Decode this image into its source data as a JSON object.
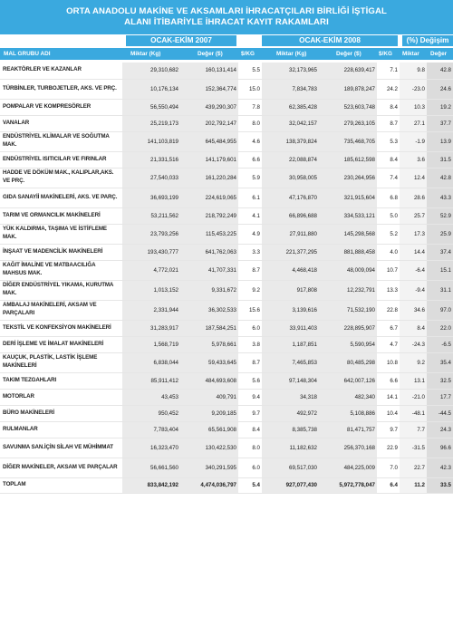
{
  "title": {
    "line1": "ORTA ANADOLU MAKİNE VE AKSAMLARI İHRACATÇILARI BİRLİĞİ İŞTİGAL",
    "line2": "ALANI İTİBARİYLE İHRACAT KAYIT RAKAMLARI"
  },
  "groups": {
    "period_2007": "OCAK-EKİM 2007",
    "period_2008": "OCAK-EKİM 2008",
    "change": "(%) Değişim"
  },
  "headers": {
    "name": "MAL GRUBU ADI",
    "kg_2007": "Miktar (Kg)",
    "usd_2007": "Değer ($)",
    "usd_per_kg_2007": "$/KG",
    "kg_2008": "Miktar (Kg)",
    "usd_2008": "Değer ($)",
    "usd_per_kg_2008": "$/KG",
    "change_kg": "Miktar",
    "change_usd": "Değer"
  },
  "rows": [
    {
      "name": "REAKTÖRLER VE KAZANLAR",
      "kg07": "29,310,682",
      "usd07": "160,131,414",
      "upk07": "5.5",
      "kg08": "32,173,965",
      "usd08": "228,639,417",
      "upk08": "7.1",
      "ckg": "9.8",
      "cusd": "42.8"
    },
    {
      "name": "TÜRBİNLER, TURBOJETLER, AKS. VE PRÇ.",
      "kg07": "10,176,134",
      "usd07": "152,364,774",
      "upk07": "15.0",
      "kg08": "7,834,783",
      "usd08": "189,878,247",
      "upk08": "24.2",
      "ckg": "-23.0",
      "cusd": "24.6"
    },
    {
      "name": "POMPALAR VE KOMPRESÖRLER",
      "kg07": "56,550,494",
      "usd07": "439,290,307",
      "upk07": "7.8",
      "kg08": "62,385,428",
      "usd08": "523,603,748",
      "upk08": "8.4",
      "ckg": "10.3",
      "cusd": "19.2"
    },
    {
      "name": "VANALAR",
      "kg07": "25,219,173",
      "usd07": "202,792,147",
      "upk07": "8.0",
      "kg08": "32,042,157",
      "usd08": "279,263,105",
      "upk08": "8.7",
      "ckg": "27.1",
      "cusd": "37.7"
    },
    {
      "name": "ENDÜSTRİYEL KLİMALAR VE SOĞUTMA MAK.",
      "kg07": "141,103,819",
      "usd07": "645,484,955",
      "upk07": "4.6",
      "kg08": "138,379,824",
      "usd08": "735,468,705",
      "upk08": "5.3",
      "ckg": "-1.9",
      "cusd": "13.9"
    },
    {
      "name": "ENDÜSTRİYEL ISITICILAR VE FIRINLAR",
      "kg07": "21,331,516",
      "usd07": "141,179,601",
      "upk07": "6.6",
      "kg08": "22,088,874",
      "usd08": "185,612,598",
      "upk08": "8.4",
      "ckg": "3.6",
      "cusd": "31.5"
    },
    {
      "name": "HADDE VE DÖKÜM MAK., KALIPLAR,AKS. VE PRÇ.",
      "kg07": "27,540,033",
      "usd07": "161,220,284",
      "upk07": "5.9",
      "kg08": "30,958,005",
      "usd08": "230,264,956",
      "upk08": "7.4",
      "ckg": "12.4",
      "cusd": "42.8"
    },
    {
      "name": "GIDA SANAYİİ MAKİNELERİ, AKS. VE PARÇ.",
      "kg07": "36,693,199",
      "usd07": "224,619,065",
      "upk07": "6.1",
      "kg08": "47,176,870",
      "usd08": "321,915,604",
      "upk08": "6.8",
      "ckg": "28.6",
      "cusd": "43.3"
    },
    {
      "name": "TARIM VE ORMANCILIK MAKİNELERİ",
      "kg07": "53,211,562",
      "usd07": "218,792,249",
      "upk07": "4.1",
      "kg08": "66,896,688",
      "usd08": "334,533,121",
      "upk08": "5.0",
      "ckg": "25.7",
      "cusd": "52.9"
    },
    {
      "name": "YÜK KALDIRMA, TAŞIMA VE İSTİFLEME MAK.",
      "kg07": "23,793,256",
      "usd07": "115,453,225",
      "upk07": "4.9",
      "kg08": "27,911,880",
      "usd08": "145,298,568",
      "upk08": "5.2",
      "ckg": "17.3",
      "cusd": "25.9"
    },
    {
      "name": "İNŞAAT VE MADENCİLİK MAKİNELERİ",
      "kg07": "193,430,777",
      "usd07": "641,762,063",
      "upk07": "3.3",
      "kg08": "221,377,295",
      "usd08": "881,888,458",
      "upk08": "4.0",
      "ckg": "14.4",
      "cusd": "37.4"
    },
    {
      "name": "KAĞIT İMALİNE VE MATBAACILIĞA MAHSUS MAK.",
      "kg07": "4,772,021",
      "usd07": "41,707,331",
      "upk07": "8.7",
      "kg08": "4,468,418",
      "usd08": "48,009,094",
      "upk08": "10.7",
      "ckg": "-6.4",
      "cusd": "15.1"
    },
    {
      "name": "DİĞER ENDÜSTRİYEL YIKAMA, KURUTMA MAK.",
      "kg07": "1,013,152",
      "usd07": "9,331,672",
      "upk07": "9.2",
      "kg08": "917,808",
      "usd08": "12,232,791",
      "upk08": "13.3",
      "ckg": "-9.4",
      "cusd": "31.1"
    },
    {
      "name": "AMBALAJ MAKİNELERİ, AKSAM VE PARÇALARI",
      "kg07": "2,331,944",
      "usd07": "36,302,533",
      "upk07": "15.6",
      "kg08": "3,139,616",
      "usd08": "71,532,190",
      "upk08": "22.8",
      "ckg": "34.6",
      "cusd": "97.0"
    },
    {
      "name": "TEKSTİL VE KONFEKSİYON MAKİNELERİ",
      "kg07": "31,283,917",
      "usd07": "187,584,251",
      "upk07": "6.0",
      "kg08": "33,911,403",
      "usd08": "228,895,907",
      "upk08": "6.7",
      "ckg": "8.4",
      "cusd": "22.0"
    },
    {
      "name": "DERİ İŞLEME VE İMALAT MAKİNELERİ",
      "kg07": "1,568,719",
      "usd07": "5,978,661",
      "upk07": "3.8",
      "kg08": "1,187,851",
      "usd08": "5,590,954",
      "upk08": "4.7",
      "ckg": "-24.3",
      "cusd": "-6.5"
    },
    {
      "name": "KAUÇUK, PLASTİK, LASTİK İŞLEME MAKİNELERİ",
      "kg07": "6,838,044",
      "usd07": "59,433,645",
      "upk07": "8.7",
      "kg08": "7,465,853",
      "usd08": "80,485,298",
      "upk08": "10.8",
      "ckg": "9.2",
      "cusd": "35.4"
    },
    {
      "name": "TAKIM TEZGAHLARI",
      "kg07": "85,911,412",
      "usd07": "484,693,608",
      "upk07": "5.6",
      "kg08": "97,148,304",
      "usd08": "642,007,126",
      "upk08": "6.6",
      "ckg": "13.1",
      "cusd": "32.5"
    },
    {
      "name": "MOTORLAR",
      "kg07": "43,453",
      "usd07": "409,791",
      "upk07": "9.4",
      "kg08": "34,318",
      "usd08": "482,340",
      "upk08": "14.1",
      "ckg": "-21.0",
      "cusd": "17.7"
    },
    {
      "name": "BÜRO MAKİNELERİ",
      "kg07": "950,452",
      "usd07": "9,209,185",
      "upk07": "9.7",
      "kg08": "492,972",
      "usd08": "5,108,886",
      "upk08": "10.4",
      "ckg": "-48.1",
      "cusd": "-44.5"
    },
    {
      "name": "RULMANLAR",
      "kg07": "7,783,404",
      "usd07": "65,561,908",
      "upk07": "8.4",
      "kg08": "8,385,738",
      "usd08": "81,471,757",
      "upk08": "9.7",
      "ckg": "7.7",
      "cusd": "24.3"
    },
    {
      "name": "SAVUNMA SAN.İÇİN SİLAH VE MÜHİMMAT",
      "kg07": "16,323,470",
      "usd07": "130,422,530",
      "upk07": "8.0",
      "kg08": "11,182,632",
      "usd08": "256,370,168",
      "upk08": "22.9",
      "ckg": "-31.5",
      "cusd": "96.6"
    },
    {
      "name": "DİĞER MAKİNELER, AKSAM VE PARÇALAR",
      "kg07": "56,661,560",
      "usd07": "340,291,595",
      "upk07": "6.0",
      "kg08": "69,517,030",
      "usd08": "484,225,009",
      "upk08": "7.0",
      "ckg": "22.7",
      "cusd": "42.3"
    }
  ],
  "total": {
    "name": "TOPLAM",
    "kg07": "833,842,192",
    "usd07": "4,474,036,797",
    "upk07": "5.4",
    "kg08": "927,077,430",
    "usd08": "5,972,778,047",
    "upk08": "6.4",
    "ckg": "11.2",
    "cusd": "33.5"
  }
}
